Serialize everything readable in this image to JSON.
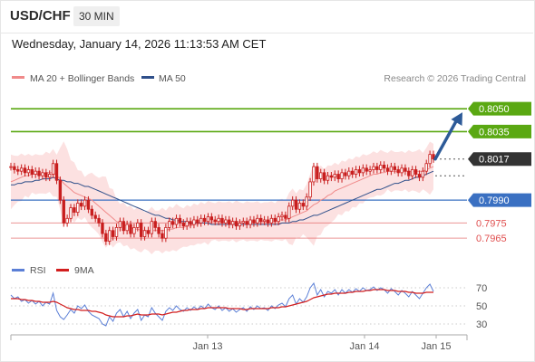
{
  "header": {
    "pair": "USD/CHF",
    "timeframe": "30 MIN",
    "datetime": "Wednesday, January 14, 2026 11:13:53 AM CET"
  },
  "colors": {
    "resistance": "#5aa812",
    "pivot": "#3a70c2",
    "support": "#e05050",
    "last_price": "#333333",
    "bollinger_fill": "#fbd7d7",
    "ma20": "#f08a8a",
    "ma50": "#2f4f8a",
    "candle": "#c81e1e",
    "arrow": "#2d5a98",
    "rsi": "#5b7fd6",
    "rsi_ma": "#d21e1e"
  },
  "chart_data": [
    {
      "type": "candlestick",
      "title": "",
      "legend": {
        "position": "top-left",
        "entries": [
          {
            "name": "MA 20 + Bollinger Bands",
            "color": "#f08a8a"
          },
          {
            "name": "MA 50",
            "color": "#2f4f8a"
          }
        ]
      },
      "credit": "Research © 2026 Trading Central",
      "x_ticks": [
        "Jan 13",
        "Jan 14",
        "Jan 15"
      ],
      "ylim": [
        0.7955,
        0.8062
      ],
      "levels": [
        {
          "label": "0.8050",
          "value": 0.805,
          "kind": "resistance"
        },
        {
          "label": "0.8035",
          "value": 0.8035,
          "kind": "resistance"
        },
        {
          "label": "0.8017",
          "value": 0.8017,
          "kind": "last"
        },
        {
          "label": "0.7990",
          "value": 0.799,
          "kind": "pivot"
        },
        {
          "label": "0.7975",
          "value": 0.7975,
          "kind": "support"
        },
        {
          "label": "0.7965",
          "value": 0.7965,
          "kind": "support"
        }
      ],
      "close": [
        0.8012,
        0.801,
        0.8009,
        0.8011,
        0.8008,
        0.801,
        0.8007,
        0.8009,
        0.8006,
        0.8008,
        0.8005,
        0.8007,
        0.8014,
        0.8003,
        0.799,
        0.7975,
        0.7978,
        0.7985,
        0.7982,
        0.7988,
        0.7986,
        0.799,
        0.7984,
        0.798,
        0.7978,
        0.7975,
        0.7968,
        0.7963,
        0.797,
        0.7966,
        0.7972,
        0.7976,
        0.797,
        0.7974,
        0.7968,
        0.7972,
        0.7975,
        0.7966,
        0.797,
        0.7968,
        0.7976,
        0.7972,
        0.7968,
        0.7965,
        0.7972,
        0.7976,
        0.7974,
        0.7978,
        0.7975,
        0.7973,
        0.7976,
        0.7974,
        0.7977,
        0.7975,
        0.7978,
        0.7976,
        0.7979,
        0.7977,
        0.7976,
        0.7978,
        0.7975,
        0.7977,
        0.7974,
        0.7976,
        0.7973,
        0.7975,
        0.7976,
        0.7974,
        0.7977,
        0.7975,
        0.7978,
        0.7976,
        0.7977,
        0.7975,
        0.7978,
        0.7976,
        0.7979,
        0.798,
        0.7978,
        0.7986,
        0.799,
        0.7984,
        0.7988,
        0.7986,
        0.7992,
        0.8002,
        0.8012,
        0.8004,
        0.8008,
        0.8003,
        0.8006,
        0.8005,
        0.8007,
        0.8004,
        0.8008,
        0.8006,
        0.8009,
        0.8007,
        0.801,
        0.8008,
        0.8011,
        0.8009,
        0.801,
        0.8012,
        0.801,
        0.8013,
        0.8011,
        0.8009,
        0.8012,
        0.801,
        0.8008,
        0.8011,
        0.8009,
        0.8006,
        0.801,
        0.8007,
        0.8005,
        0.8009,
        0.8014,
        0.802,
        0.8017
      ],
      "ma20": [
        0.8002,
        0.8003,
        0.8004,
        0.8005,
        0.8006,
        0.8006,
        0.8007,
        0.8007,
        0.8007,
        0.8007,
        0.8008,
        0.8008,
        0.8008,
        0.8006,
        0.8004,
        0.8001,
        0.7999,
        0.7997,
        0.7995,
        0.7994,
        0.7993,
        0.7992,
        0.7991,
        0.799,
        0.7988,
        0.7986,
        0.7984,
        0.7982,
        0.798,
        0.7978,
        0.7976,
        0.7975,
        0.7974,
        0.7973,
        0.7972,
        0.7971,
        0.7971,
        0.797,
        0.797,
        0.797,
        0.797,
        0.797,
        0.797,
        0.797,
        0.797,
        0.7971,
        0.7971,
        0.7972,
        0.7972,
        0.7972,
        0.7973,
        0.7973,
        0.7974,
        0.7974,
        0.7975,
        0.7975,
        0.7975,
        0.7976,
        0.7976,
        0.7976,
        0.7976,
        0.7976,
        0.7976,
        0.7976,
        0.7976,
        0.7976,
        0.7976,
        0.7976,
        0.7976,
        0.7976,
        0.7976,
        0.7976,
        0.7976,
        0.7976,
        0.7976,
        0.7976,
        0.7977,
        0.7977,
        0.7977,
        0.7978,
        0.7979,
        0.798,
        0.7981,
        0.7982,
        0.7983,
        0.7985,
        0.7987,
        0.7988,
        0.799,
        0.7991,
        0.7993,
        0.7994,
        0.7996,
        0.7997,
        0.7998,
        0.7999,
        0.8,
        0.8001,
        0.8002,
        0.8003,
        0.8004,
        0.8005,
        0.8006,
        0.8007,
        0.8007,
        0.8008,
        0.8008,
        0.8009,
        0.8009,
        0.8009,
        0.8009,
        0.8009,
        0.8009,
        0.8009,
        0.8009,
        0.8009,
        0.8009,
        0.8009,
        0.801,
        0.8011,
        0.8012
      ],
      "ma50": [
        0.8,
        0.8,
        0.8001,
        0.8001,
        0.8002,
        0.8002,
        0.8002,
        0.8003,
        0.8003,
        0.8004,
        0.8004,
        0.8004,
        0.8005,
        0.8004,
        0.8003,
        0.8003,
        0.8002,
        0.8002,
        0.8001,
        0.8001,
        0.8,
        0.7999,
        0.7999,
        0.7998,
        0.7997,
        0.7996,
        0.7995,
        0.7994,
        0.7993,
        0.7992,
        0.7991,
        0.799,
        0.7989,
        0.7988,
        0.7987,
        0.7986,
        0.7985,
        0.7984,
        0.7983,
        0.7982,
        0.7981,
        0.798,
        0.798,
        0.7979,
        0.7978,
        0.7978,
        0.7977,
        0.7977,
        0.7976,
        0.7976,
        0.7976,
        0.7975,
        0.7975,
        0.7975,
        0.7975,
        0.7975,
        0.7975,
        0.7974,
        0.7974,
        0.7974,
        0.7974,
        0.7974,
        0.7974,
        0.7974,
        0.7974,
        0.7974,
        0.7974,
        0.7974,
        0.7974,
        0.7974,
        0.7974,
        0.7974,
        0.7974,
        0.7974,
        0.7974,
        0.7974,
        0.7974,
        0.7975,
        0.7975,
        0.7975,
        0.7976,
        0.7976,
        0.7977,
        0.7977,
        0.7978,
        0.7979,
        0.798,
        0.798,
        0.7981,
        0.7982,
        0.7983,
        0.7984,
        0.7985,
        0.7986,
        0.7987,
        0.7988,
        0.7989,
        0.799,
        0.7991,
        0.7992,
        0.7993,
        0.7994,
        0.7995,
        0.7996,
        0.7997,
        0.7997,
        0.7998,
        0.7999,
        0.8,
        0.8001,
        0.8001,
        0.8002,
        0.8003,
        0.8003,
        0.8004,
        0.8005,
        0.8005,
        0.8006,
        0.8007,
        0.8008,
        0.8009
      ],
      "bollinger_width": 0.0012
    },
    {
      "type": "line",
      "legend": {
        "position": "top-left",
        "entries": [
          {
            "name": "RSI",
            "color": "#5b7fd6"
          },
          {
            "name": "9MA",
            "color": "#d21e1e"
          }
        ]
      },
      "y_ticks": [
        70,
        50,
        30
      ],
      "ylim": [
        20,
        80
      ],
      "rsi": [
        62,
        58,
        60,
        55,
        57,
        53,
        56,
        52,
        55,
        50,
        54,
        52,
        64,
        45,
        38,
        35,
        40,
        46,
        42,
        50,
        47,
        51,
        44,
        40,
        38,
        36,
        30,
        28,
        38,
        33,
        42,
        46,
        38,
        44,
        36,
        42,
        46,
        34,
        40,
        38,
        48,
        42,
        38,
        34,
        44,
        48,
        45,
        50,
        46,
        44,
        48,
        45,
        49,
        46,
        50,
        47,
        52,
        48,
        46,
        50,
        45,
        48,
        44,
        47,
        43,
        46,
        48,
        44,
        49,
        46,
        50,
        47,
        48,
        45,
        50,
        47,
        51,
        53,
        49,
        58,
        62,
        52,
        58,
        54,
        60,
        70,
        75,
        62,
        68,
        60,
        66,
        64,
        68,
        62,
        68,
        64,
        68,
        65,
        69,
        66,
        70,
        67,
        68,
        71,
        67,
        70,
        68,
        64,
        69,
        66,
        62,
        67,
        64,
        60,
        66,
        62,
        58,
        64,
        70,
        74,
        66
      ],
      "rsi_ma": [
        58,
        58,
        58,
        57,
        57,
        56,
        56,
        55,
        55,
        54,
        54,
        54,
        55,
        54,
        52,
        50,
        48,
        47,
        46,
        46,
        45,
        45,
        45,
        44,
        44,
        43,
        42,
        40,
        39,
        38,
        38,
        38,
        38,
        39,
        39,
        40,
        41,
        40,
        40,
        40,
        41,
        41,
        41,
        40,
        41,
        42,
        43,
        43,
        44,
        45,
        45,
        46,
        46,
        46,
        47,
        47,
        48,
        48,
        48,
        48,
        48,
        48,
        47,
        47,
        47,
        47,
        46,
        46,
        47,
        47,
        47,
        47,
        47,
        47,
        48,
        48,
        48,
        49,
        49,
        50,
        51,
        52,
        53,
        54,
        55,
        57,
        59,
        60,
        61,
        62,
        63,
        63,
        64,
        64,
        64,
        64,
        65,
        65,
        66,
        66,
        66,
        67,
        67,
        68,
        68,
        68,
        68,
        67,
        67,
        67,
        66,
        66,
        66,
        65,
        65,
        64,
        64,
        64,
        65,
        65,
        65
      ]
    }
  ]
}
